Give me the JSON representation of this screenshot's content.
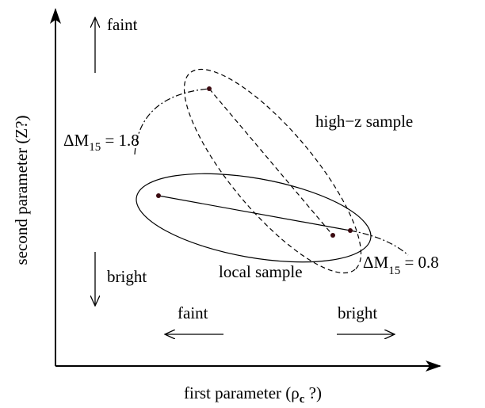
{
  "labels": {
    "up_faint": "faint",
    "down_bright": "bright",
    "left_faint": "faint",
    "right_bright": "bright",
    "high_z": "high−z sample",
    "local": "local sample",
    "dm_high": {
      "symbol": "ΔM",
      "subscript": "15",
      "rest": " = 1.8"
    },
    "dm_low": {
      "symbol": "ΔM",
      "subscript": "15",
      "rest": " = 0.8"
    },
    "y_axis": "second parameter (Z?)",
    "x_axis": {
      "prefix": "first parameter (",
      "symbol": "ρ",
      "subscript": "c",
      "suffix": " ?)"
    }
  }
}
